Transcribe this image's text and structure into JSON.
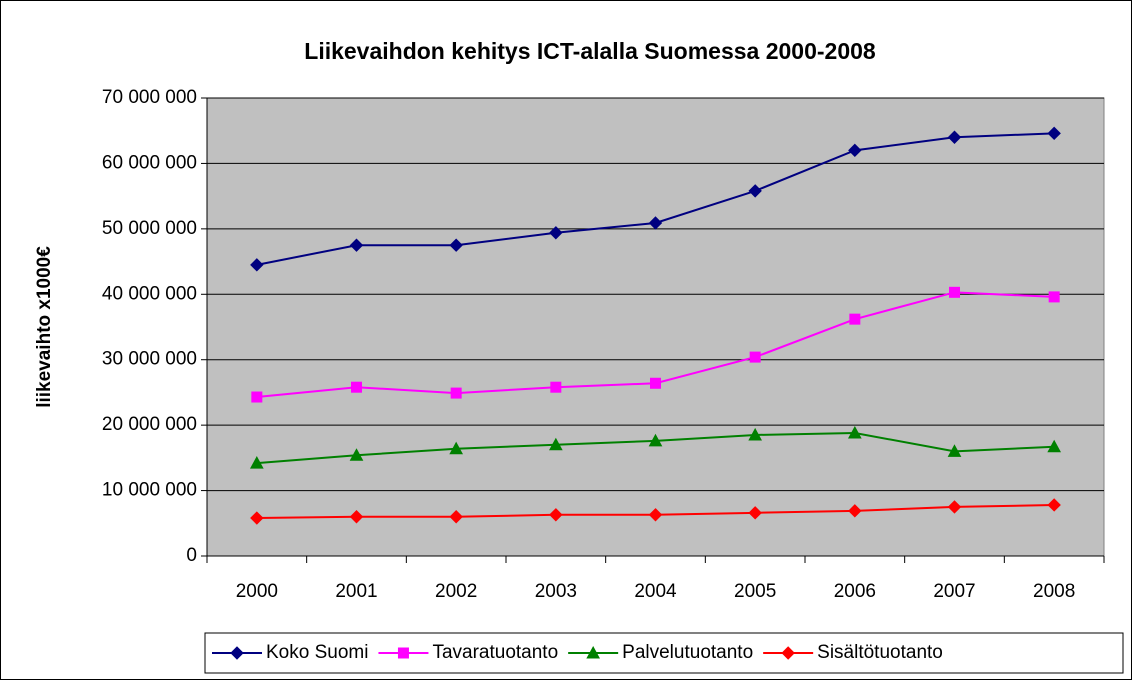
{
  "chart_data": {
    "type": "line",
    "title": "Liikevaihdon kehitys ICT-alalla Suomessa 2000-2008",
    "y_label": "liikevaihto x1000€",
    "categories": [
      "2000",
      "2001",
      "2002",
      "2003",
      "2004",
      "2005",
      "2006",
      "2007",
      "2008"
    ],
    "series": [
      {
        "name": "Koko Suomi",
        "color": "#000080",
        "marker": "diamond",
        "values": [
          44500000,
          47500000,
          47500000,
          49400000,
          50900000,
          55800000,
          62000000,
          64000000,
          64600000
        ]
      },
      {
        "name": "Tavaratuotanto",
        "color": "#ff00ff",
        "marker": "square",
        "values": [
          24300000,
          25800000,
          24900000,
          25800000,
          26400000,
          30400000,
          36200000,
          40300000,
          39600000
        ]
      },
      {
        "name": "Palvelutuotanto",
        "color": "#008000",
        "marker": "triangle",
        "values": [
          14200000,
          15400000,
          16400000,
          17000000,
          17600000,
          18500000,
          18800000,
          16000000,
          16700000
        ]
      },
      {
        "name": "Sisältötuotanto",
        "color": "#ff0000",
        "marker": "diamond",
        "values": [
          5800000,
          6000000,
          6000000,
          6300000,
          6300000,
          6600000,
          6900000,
          7500000,
          7800000
        ]
      }
    ],
    "ylim": [
      0,
      70000000
    ],
    "yticks": [
      {
        "value": 0,
        "label": "0"
      },
      {
        "value": 10000000,
        "label": "10 000 000"
      },
      {
        "value": 20000000,
        "label": "20 000 000"
      },
      {
        "value": 30000000,
        "label": "30 000 000"
      },
      {
        "value": 40000000,
        "label": "40 000 000"
      },
      {
        "value": 50000000,
        "label": "50 000 000"
      },
      {
        "value": 60000000,
        "label": "60 000 000"
      },
      {
        "value": 70000000,
        "label": "70 000 000"
      }
    ],
    "grid": true,
    "plot_background": "#c0c0c0",
    "legend": "bottom"
  }
}
